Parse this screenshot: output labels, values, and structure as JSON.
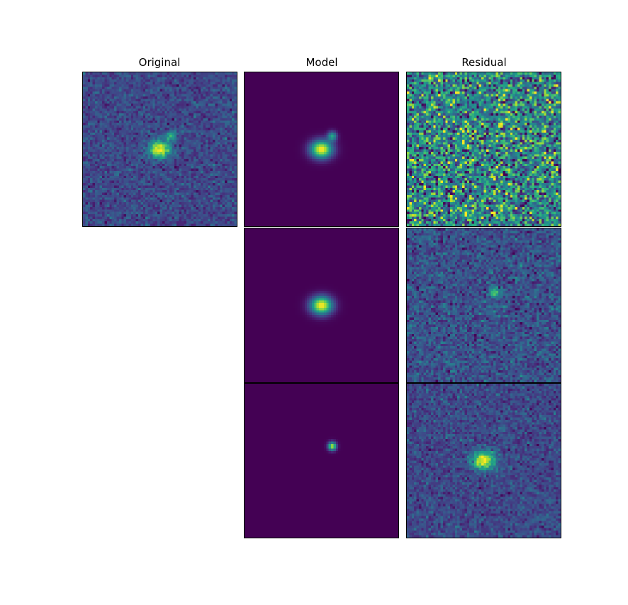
{
  "chart_data": {
    "type": "heatmap",
    "colormap": "viridis",
    "axes_visible": false,
    "grid": false,
    "image_size": [
      64,
      64
    ],
    "columns": [
      "Original",
      "Model",
      "Residual"
    ],
    "panels": [
      {
        "column": "Original",
        "row": 0,
        "content": "noisy image: bright source near center with small companion up-right"
      },
      {
        "column": "Model",
        "row": 0,
        "content": "smooth sum of two sources (main at center, companion up-right)"
      },
      {
        "column": "Residual",
        "row": 0,
        "content": "pure noise, high contrast"
      },
      {
        "column": "Model",
        "row": 1,
        "content": "smooth extended source at center"
      },
      {
        "column": "Residual",
        "row": 1,
        "content": "noise with compact source up-right of center"
      },
      {
        "column": "Model",
        "row": 2,
        "content": "compact source slightly right of and below center"
      },
      {
        "column": "Residual",
        "row": 2,
        "content": "noise with extended source at center-bottom"
      }
    ]
  }
}
